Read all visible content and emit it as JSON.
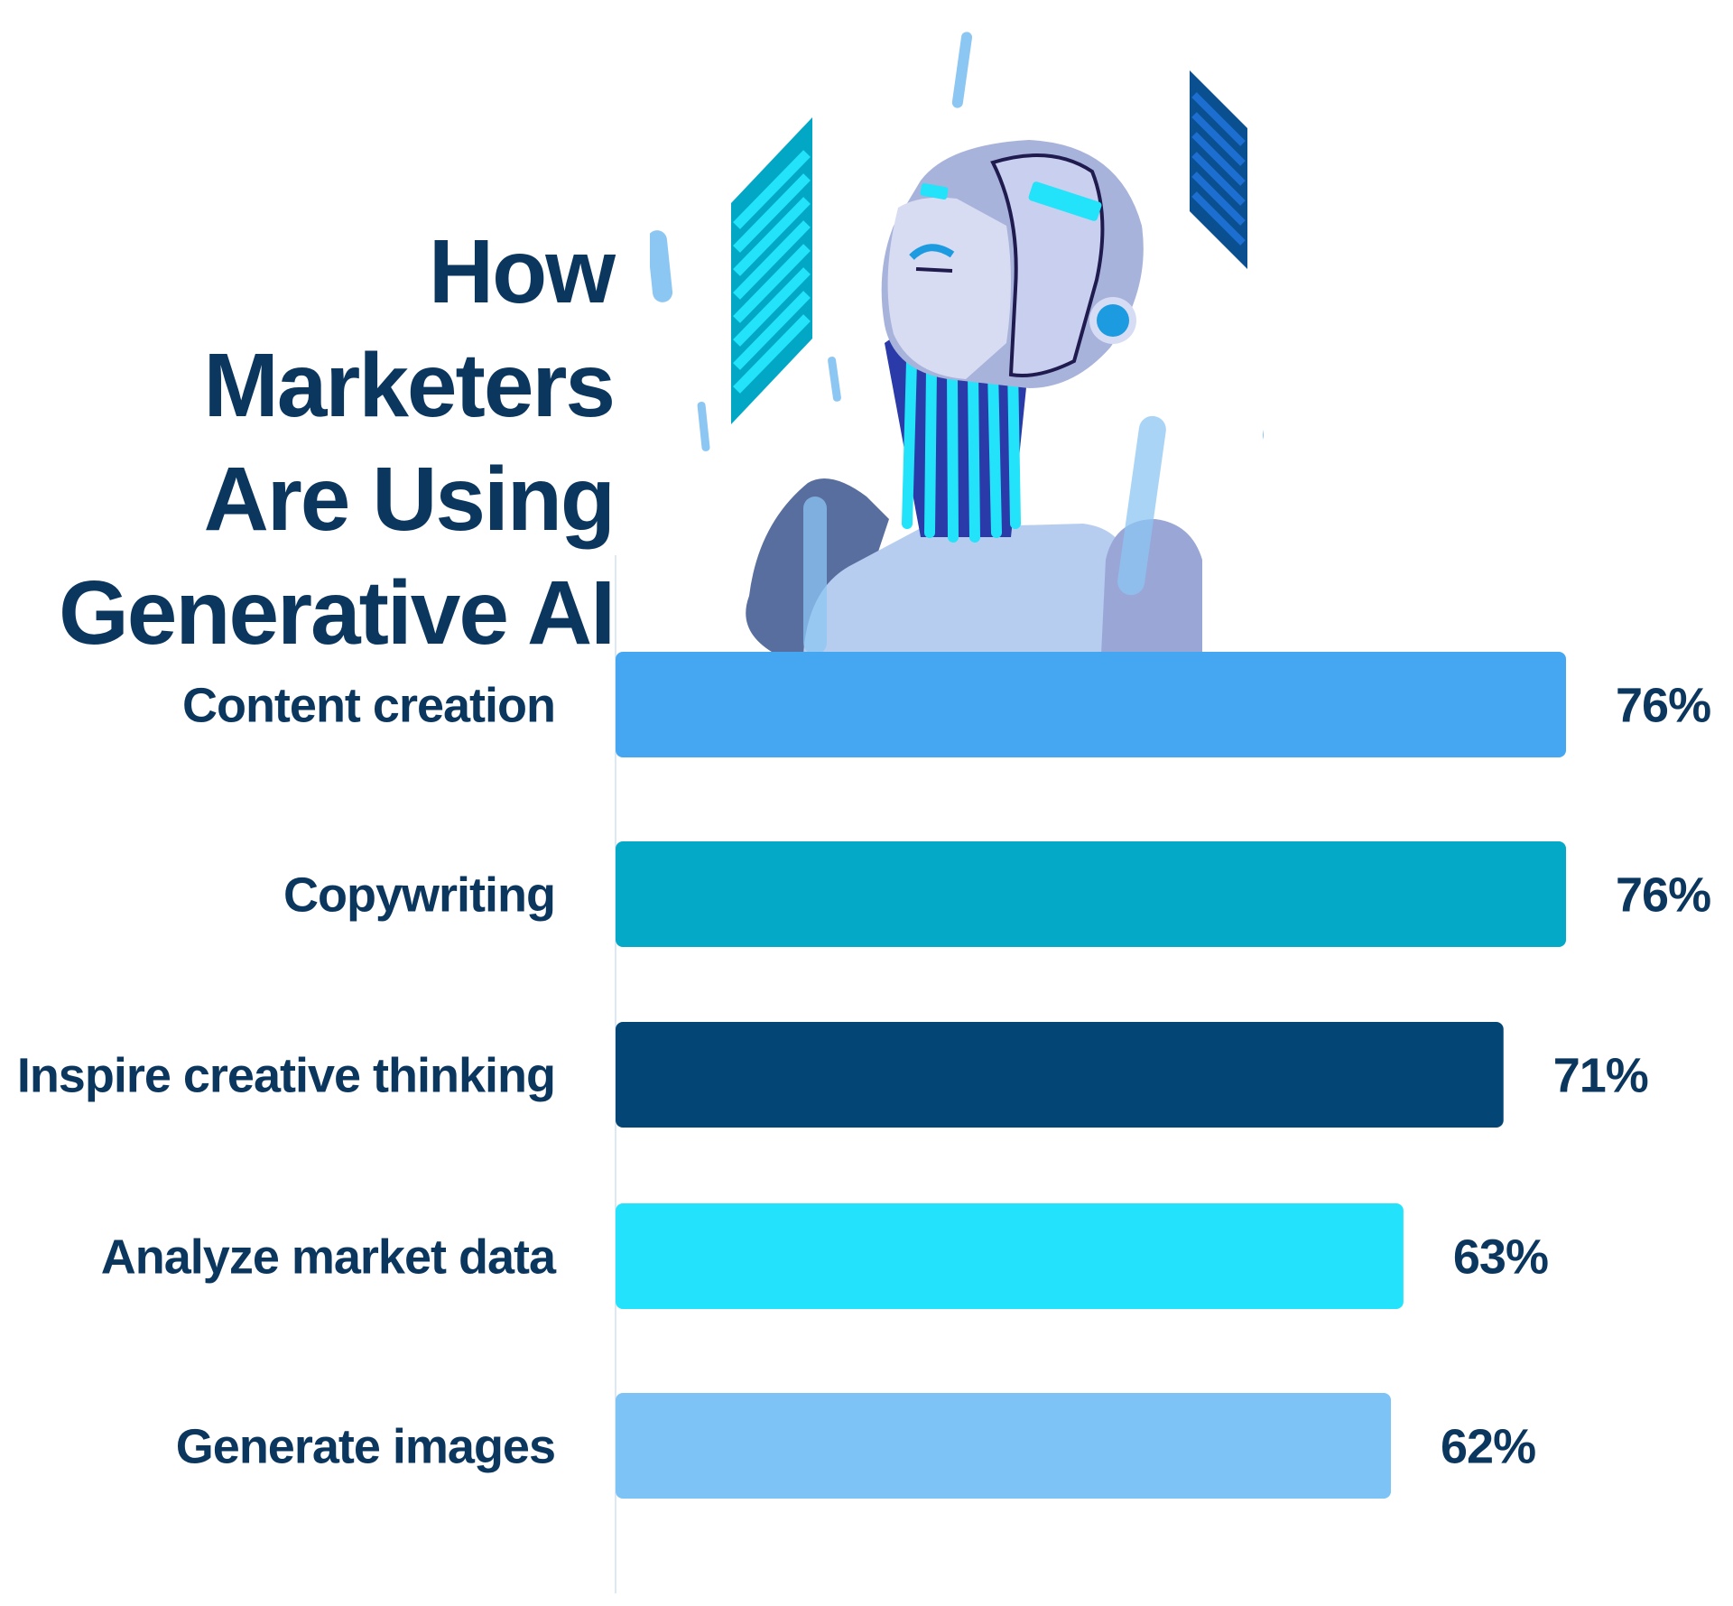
{
  "title": {
    "line1": "How Marketers",
    "line2": "Are Using",
    "line3": "Generative AI"
  },
  "illustration": {
    "subject": "robot-head-illustration",
    "colors": {
      "skin": "#b9c3e6",
      "skin_dark": "#7986b8",
      "accent_cyan": "#22e3f9",
      "accent_blue": "#1c9be0",
      "panel_dark": "#0a4f8f",
      "drop_light": "#8cc6f3"
    }
  },
  "chart_data": {
    "type": "bar",
    "orientation": "horizontal",
    "categories": [
      "Content creation",
      "Copywriting",
      "Inspire creative thinking",
      "Analyze market data",
      "Generate images"
    ],
    "values": [
      76,
      76,
      71,
      63,
      62
    ],
    "value_labels": [
      "76%",
      "76%",
      "71%",
      "63%",
      "62%"
    ],
    "unit": "%",
    "xlim": [
      0,
      100
    ],
    "grid": false,
    "legend": "none",
    "bar_colors": [
      "#45a7f2",
      "#03a9c6",
      "#034574",
      "#22e3fb",
      "#7dc3f5"
    ]
  }
}
